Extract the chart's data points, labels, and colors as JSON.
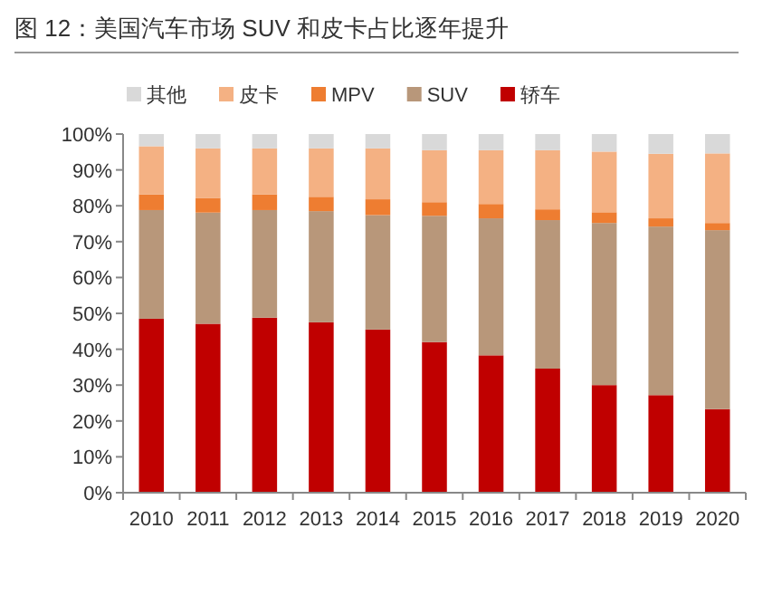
{
  "chart_data": {
    "type": "bar",
    "stacked": true,
    "title": "图 12：美国汽车市场 SUV 和皮卡占比逐年提升",
    "categories": [
      "2010",
      "2011",
      "2012",
      "2013",
      "2014",
      "2015",
      "2016",
      "2017",
      "2018",
      "2019",
      "2020"
    ],
    "series": [
      {
        "name": "轿车",
        "color": "#c00000",
        "values": [
          48.5,
          47.1,
          48.8,
          47.5,
          45.5,
          42.0,
          38.3,
          34.6,
          30.0,
          27.2,
          23.3
        ]
      },
      {
        "name": "SUV",
        "color": "#b8977a",
        "values": [
          30.3,
          31.0,
          30.0,
          31.0,
          31.9,
          35.2,
          38.2,
          41.4,
          45.2,
          47.0,
          49.9
        ]
      },
      {
        "name": "MPV",
        "color": "#ee7d31",
        "values": [
          4.4,
          4.1,
          4.4,
          4.0,
          4.4,
          3.8,
          4.0,
          3.0,
          3.0,
          2.3,
          2.0
        ]
      },
      {
        "name": "皮卡",
        "color": "#f4b183",
        "values": [
          13.4,
          13.8,
          12.8,
          13.5,
          14.2,
          14.5,
          15.0,
          16.5,
          16.9,
          18.0,
          19.4
        ]
      },
      {
        "name": "其他",
        "color": "#d9d9d9",
        "values": [
          3.4,
          4.0,
          4.0,
          4.0,
          4.0,
          4.5,
          4.5,
          4.5,
          4.9,
          5.5,
          5.4
        ]
      }
    ],
    "ylim": [
      0,
      100
    ],
    "yticks": [
      {
        "value": 0,
        "label": "0%"
      },
      {
        "value": 10,
        "label": "10%"
      },
      {
        "value": 20,
        "label": "20%"
      },
      {
        "value": 30,
        "label": "30%"
      },
      {
        "value": 40,
        "label": "40%"
      },
      {
        "value": 50,
        "label": "50%"
      },
      {
        "value": 60,
        "label": "60%"
      },
      {
        "value": 70,
        "label": "70%"
      },
      {
        "value": 80,
        "label": "80%"
      },
      {
        "value": 90,
        "label": "90%"
      },
      {
        "value": 100,
        "label": "100%"
      }
    ],
    "grid": false,
    "legend": "top"
  }
}
